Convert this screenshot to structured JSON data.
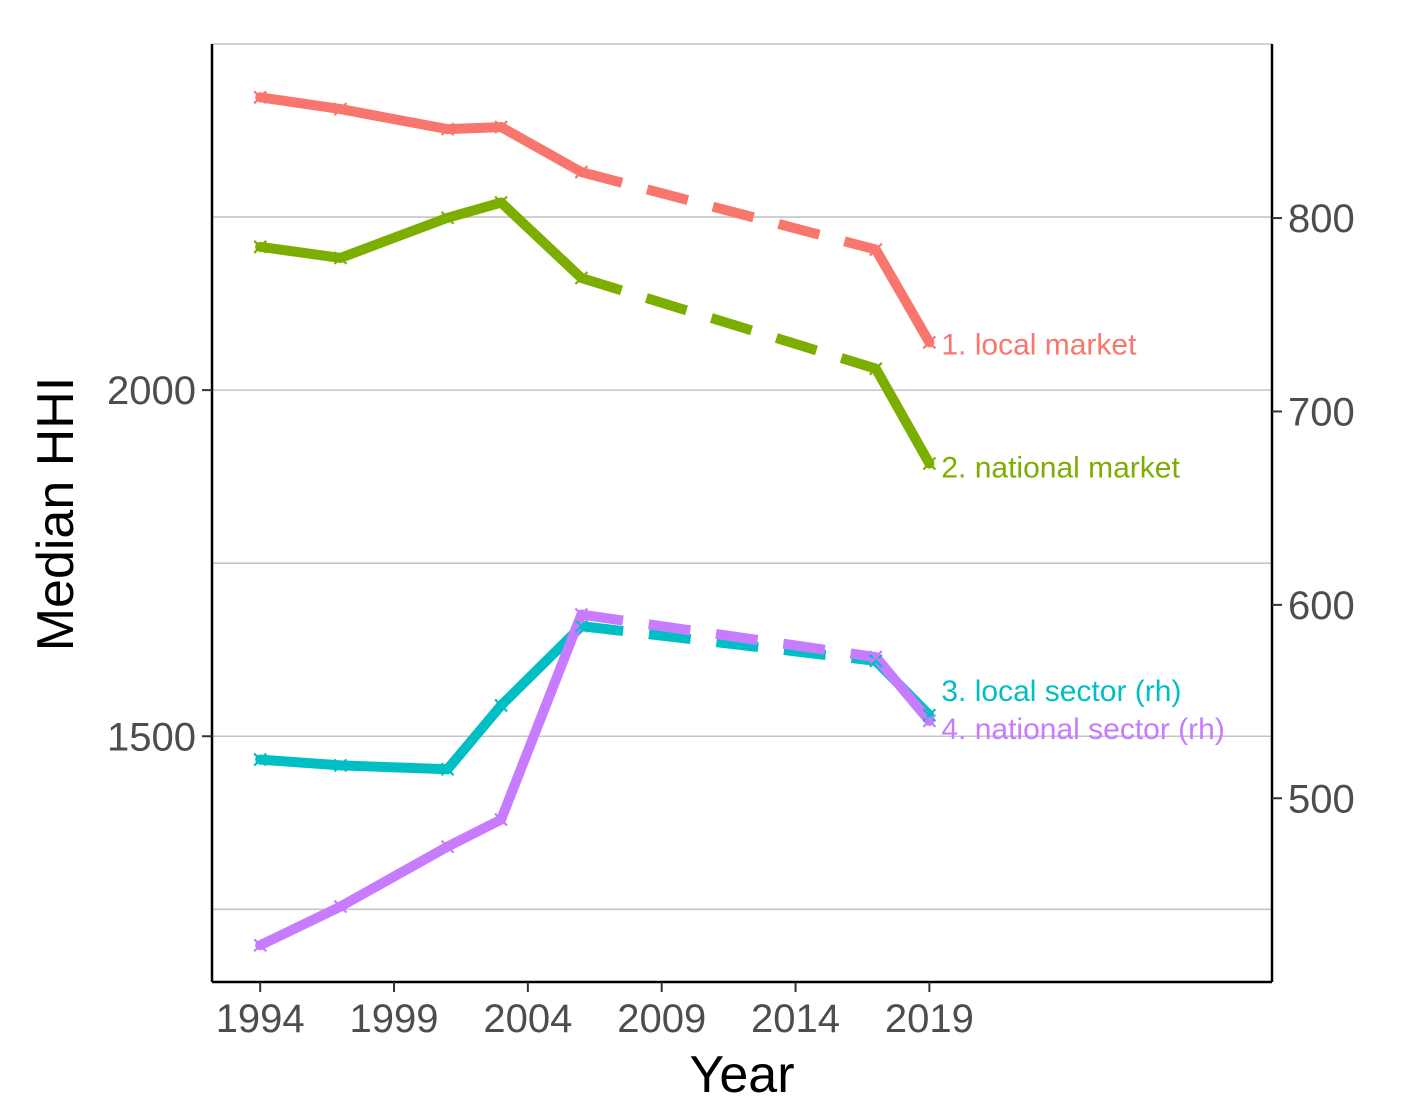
{
  "chart_data": {
    "type": "line",
    "xlabel": "Year",
    "ylabel": "Median HHI",
    "x_ticks": [
      1994,
      1999,
      2004,
      2009,
      2014,
      2019
    ],
    "y_left_ticks": [
      1500,
      2000
    ],
    "y_left_lim": [
      1145,
      2500
    ],
    "y_right_ticks": [
      500,
      600,
      700,
      800
    ],
    "y_right_lim": [
      405,
      890
    ],
    "xlim": [
      1992.2,
      2031.8
    ],
    "grid": "horizontal major lines",
    "legend": "none (direct labels at line ends)",
    "series": [
      {
        "name": "1. local market",
        "axis": "left",
        "color": "#F8766D",
        "x": [
          1994,
          1997,
          2001,
          2003,
          2006,
          2017,
          2019
        ],
        "y": [
          2423,
          2406,
          2377,
          2380,
          2315,
          2203,
          2069
        ],
        "dashed_from_index": 4,
        "dashed_to_index": 5
      },
      {
        "name": "2. national market",
        "axis": "left",
        "color": "#7CAE00",
        "x": [
          1994,
          1997,
          2001,
          2003,
          2006,
          2017,
          2019
        ],
        "y": [
          2207,
          2191,
          2249,
          2271,
          2162,
          2031,
          1894
        ],
        "dashed_from_index": 4,
        "dashed_to_index": 5
      },
      {
        "name": "3. local sector (rh)",
        "axis": "right",
        "color": "#00BFC4",
        "x": [
          1994,
          1997,
          2001,
          2003,
          2006,
          2017,
          2019
        ],
        "y": [
          520,
          517,
          515,
          548,
          589,
          571,
          543
        ],
        "dashed_from_index": 4,
        "dashed_to_index": 5
      },
      {
        "name": "4. national sector (rh)",
        "axis": "right",
        "color": "#C77CFF",
        "x": [
          1994,
          1997,
          2001,
          2003,
          2006,
          2017,
          2019
        ],
        "y": [
          424,
          444,
          475,
          489,
          595,
          573,
          540
        ],
        "dashed_from_index": 4,
        "dashed_to_index": 5
      }
    ]
  }
}
